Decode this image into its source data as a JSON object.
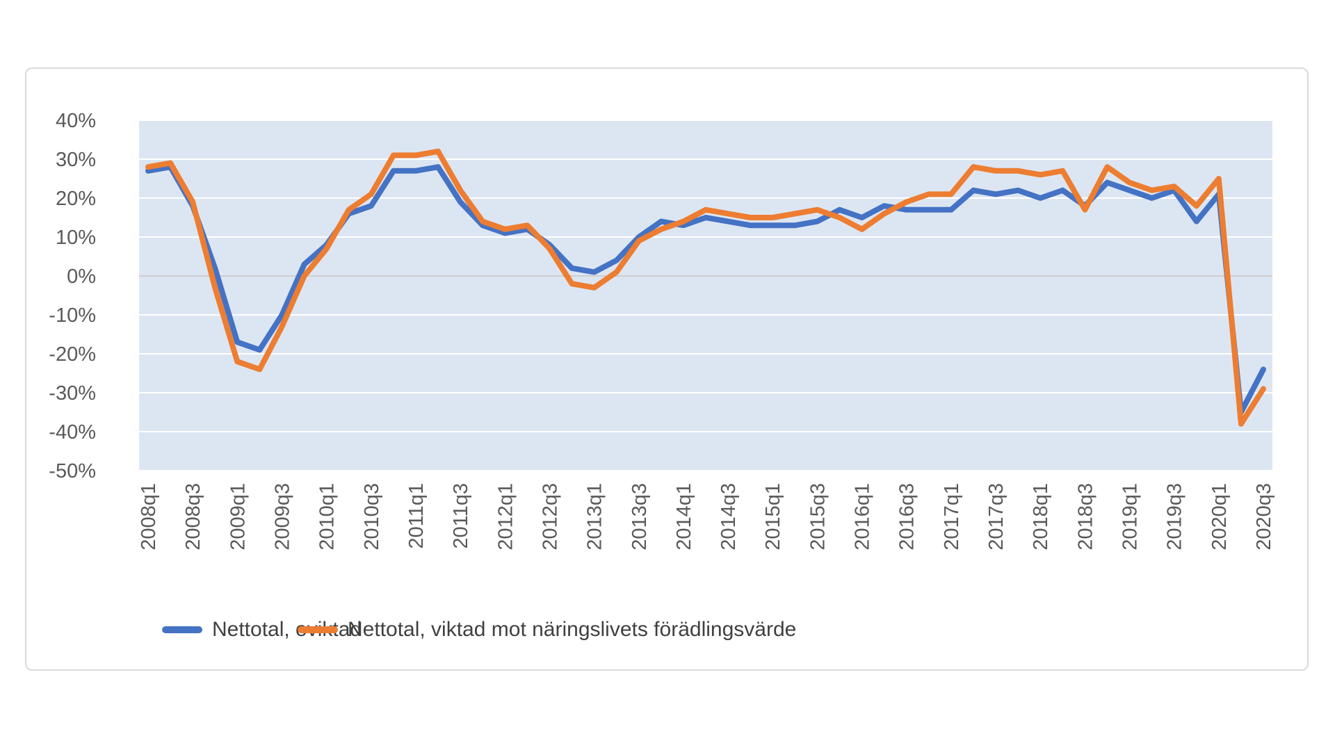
{
  "chart": {
    "colors": {
      "plot_background": "#dce6f2",
      "gridline": "#ffffff",
      "zero_line": "#cfcdcd",
      "card_border": "#d9d9d9",
      "axis_text": "#595959",
      "legend_text": "#404040"
    },
    "legend": {
      "item1": "Nettotal, oviktad",
      "item2": "Nettotal, viktad mot näringslivets förädlingsvärde"
    }
  },
  "chart_data": {
    "type": "line",
    "title": "",
    "xlabel": "",
    "ylabel": "",
    "ylim": [
      -50,
      40
    ],
    "grid": true,
    "legend_position": "bottom",
    "y_ticks": [
      40,
      30,
      20,
      10,
      0,
      -10,
      -20,
      -30,
      -40,
      -50
    ],
    "y_tick_labels": [
      "40%",
      "30%",
      "20%",
      "10%",
      "0%",
      "-10%",
      "-20%",
      "-30%",
      "-40%",
      "-50%"
    ],
    "categories": [
      "2008q1",
      "2008q2",
      "2008q3",
      "2008q4",
      "2009q1",
      "2009q2",
      "2009q3",
      "2009q4",
      "2010q1",
      "2010q2",
      "2010q3",
      "2010q4",
      "2011q1",
      "2011q2",
      "2011q3",
      "2011q4",
      "2012q1",
      "2012q2",
      "2012q3",
      "2012q4",
      "2013q1",
      "2013q2",
      "2013q3",
      "2013q4",
      "2014q1",
      "2014q2",
      "2014q3",
      "2014q4",
      "2015q1",
      "2015q2",
      "2015q3",
      "2015q4",
      "2016q1",
      "2016q2",
      "2016q3",
      "2016q4",
      "2017q1",
      "2017q2",
      "2017q3",
      "2017q4",
      "2018q1",
      "2018q2",
      "2018q3",
      "2018q4",
      "2019q1",
      "2019q2",
      "2019q3",
      "2019q4",
      "2020q1",
      "2020q2",
      "2020q3"
    ],
    "x_tick_labels": [
      "2008q1",
      "2008q3",
      "2009q1",
      "2009q3",
      "2010q1",
      "2010q3",
      "2011q1",
      "2011q3",
      "2012q1",
      "2012q3",
      "2013q1",
      "2013q3",
      "2014q1",
      "2014q3",
      "2015q1",
      "2015q3",
      "2016q1",
      "2016q3",
      "2017q1",
      "2017q3",
      "2018q1",
      "2018q3",
      "2019q1",
      "2019q3",
      "2020q1",
      "2020q3"
    ],
    "series": [
      {
        "name": "Nettotal, oviktad",
        "color": "#4472c4",
        "values": [
          27,
          28,
          18,
          2,
          -17,
          -19,
          -10,
          3,
          8,
          16,
          18,
          27,
          27,
          28,
          19,
          13,
          11,
          12,
          8,
          2,
          1,
          4,
          10,
          14,
          13,
          15,
          14,
          13,
          13,
          13,
          14,
          17,
          15,
          18,
          17,
          17,
          17,
          22,
          21,
          22,
          20,
          22,
          18,
          24,
          22,
          20,
          22,
          14,
          21,
          -35,
          -24
        ]
      },
      {
        "name": "Nettotal, viktad mot näringslivets förädlingsvärde",
        "color": "#ed7d31",
        "values": [
          28,
          29,
          19,
          -3,
          -22,
          -24,
          -13,
          0,
          7,
          17,
          21,
          31,
          31,
          32,
          22,
          14,
          12,
          13,
          7,
          -2,
          -3,
          1,
          9,
          12,
          14,
          17,
          16,
          15,
          15,
          16,
          17,
          15,
          12,
          16,
          19,
          21,
          21,
          28,
          27,
          27,
          26,
          27,
          17,
          28,
          24,
          22,
          23,
          18,
          25,
          -38,
          -29
        ]
      }
    ]
  }
}
